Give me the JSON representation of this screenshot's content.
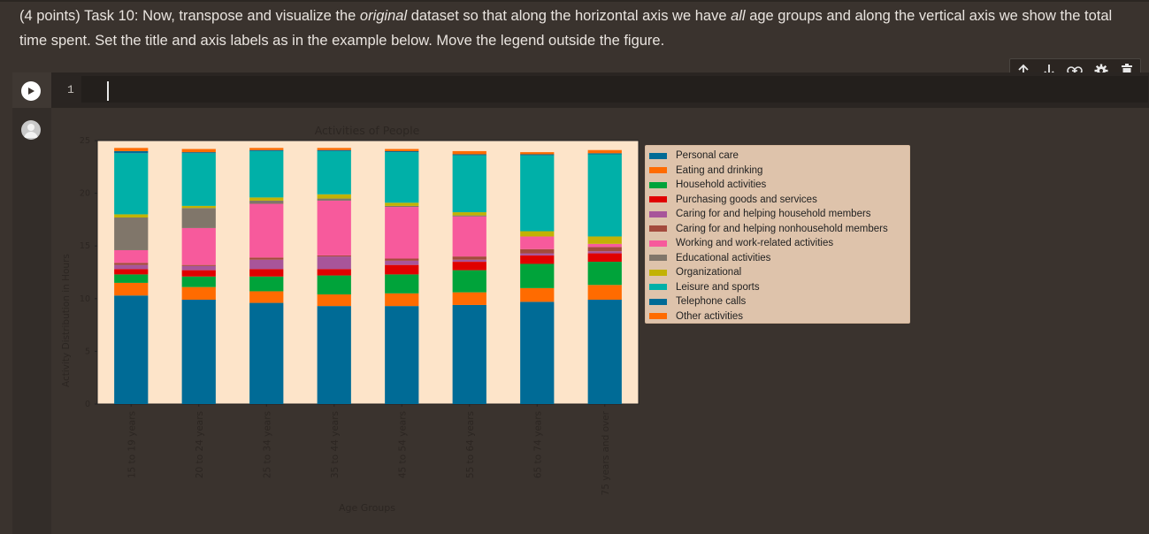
{
  "markdown": {
    "prefix": "(4 points) Task 10: Now, transpose and visualize the ",
    "em1": "original",
    "middle": " dataset so that along the horizontal axis we have ",
    "em2": "all",
    "suffix": " age groups and along the vertical axis we show the total time spent. Set the title and axis labels as in the example below. Move the legend outside the figure."
  },
  "toolbar": {
    "icons": [
      "arrow-up-icon",
      "arrow-down-icon",
      "link-icon",
      "gear-icon",
      "trash-icon"
    ]
  },
  "cell": {
    "line_number": "1",
    "code": ""
  },
  "colors": {
    "page_bg": "#3a332e",
    "plot_bg": "#fde4c9",
    "legend_bg": "#dec3ab"
  },
  "chart_data": {
    "type": "bar",
    "stacked": true,
    "title": "Activities of People",
    "xlabel": "Age Groups",
    "ylabel": "Activity Distribution in Hours",
    "ylim": [
      0,
      25
    ],
    "yticks": [
      "0",
      "5",
      "10",
      "15",
      "20",
      "25"
    ],
    "categories": [
      "15 to 19 years",
      "20 to 24 years",
      "25 to 34 years",
      "35 to 44 years",
      "45 to 54 years",
      "55 to 64 years",
      "65 to 74 years",
      "75 years and over"
    ],
    "legend_position": "outside right",
    "series": [
      {
        "name": "Personal care",
        "color": "#006b96",
        "values": [
          10.3,
          9.9,
          9.6,
          9.3,
          9.3,
          9.4,
          9.7,
          9.9
        ]
      },
      {
        "name": "Eating and drinking",
        "color": "#ff6b00",
        "values": [
          1.2,
          1.2,
          1.1,
          1.1,
          1.2,
          1.2,
          1.3,
          1.4
        ]
      },
      {
        "name": "Household activities",
        "color": "#00a33a",
        "values": [
          0.8,
          1.0,
          1.4,
          1.8,
          1.8,
          2.1,
          2.3,
          2.2
        ]
      },
      {
        "name": "Purchasing goods and services",
        "color": "#e00000",
        "values": [
          0.5,
          0.6,
          0.7,
          0.6,
          0.9,
          0.8,
          0.8,
          0.8
        ]
      },
      {
        "name": "Caring for and helping household members",
        "color": "#a8559a",
        "values": [
          0.4,
          0.4,
          0.9,
          1.2,
          0.4,
          0.2,
          0.2,
          0.2
        ]
      },
      {
        "name": "Caring for and helping nonhousehold members",
        "color": "#a34a3c",
        "values": [
          0.2,
          0.1,
          0.2,
          0.1,
          0.2,
          0.3,
          0.4,
          0.4
        ]
      },
      {
        "name": "Working and work-related activities",
        "color": "#f75a9c",
        "values": [
          1.2,
          3.5,
          5.1,
          5.2,
          4.9,
          3.8,
          1.2,
          0.3
        ]
      },
      {
        "name": "Educational activities",
        "color": "#80766a",
        "values": [
          3.1,
          1.9,
          0.3,
          0.2,
          0.1,
          0.1,
          0.0,
          0.0
        ]
      },
      {
        "name": "Organizational",
        "color": "#c2b204",
        "values": [
          0.3,
          0.2,
          0.3,
          0.4,
          0.3,
          0.3,
          0.5,
          0.7
        ]
      },
      {
        "name": "Leisure and sports",
        "color": "#00b0a8",
        "values": [
          5.8,
          5.0,
          4.4,
          4.1,
          4.8,
          5.4,
          7.2,
          7.8
        ]
      },
      {
        "name": "Telephone calls",
        "color": "#006b96",
        "values": [
          0.2,
          0.1,
          0.1,
          0.1,
          0.1,
          0.1,
          0.1,
          0.1
        ]
      },
      {
        "name": "Other activities",
        "color": "#ff6b00",
        "values": [
          0.3,
          0.3,
          0.2,
          0.2,
          0.2,
          0.3,
          0.2,
          0.3
        ]
      }
    ]
  }
}
